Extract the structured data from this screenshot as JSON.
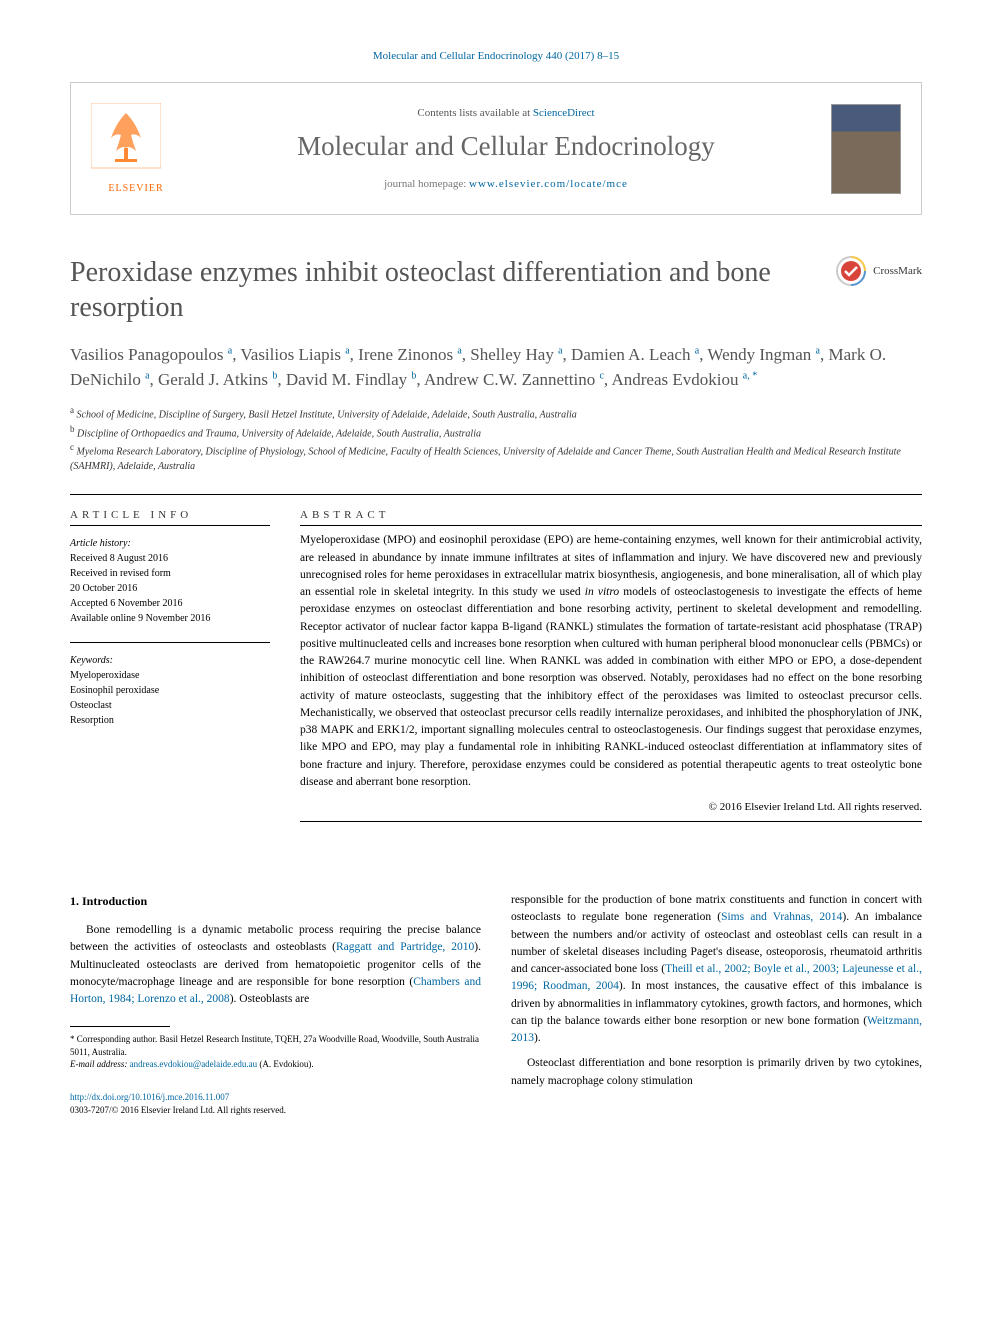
{
  "running_header": "Molecular and Cellular Endocrinology 440 (2017) 8–15",
  "banner": {
    "contents_prefix": "Contents lists available at ",
    "contents_link": "ScienceDirect",
    "journal_name": "Molecular and Cellular Endocrinology",
    "homepage_prefix": "journal homepage: ",
    "homepage_link": "www.elsevier.com/locate/mce",
    "publisher_label": "ELSEVIER"
  },
  "article": {
    "title": "Peroxidase enzymes inhibit osteoclast differentiation and bone resorption",
    "crossmark_label": "CrossMark"
  },
  "authors_html": "Vasilios Panagopoulos <sup>a</sup>, Vasilios Liapis <sup>a</sup>, Irene Zinonos <sup>a</sup>, Shelley Hay <sup>a</sup>, Damien A. Leach <sup>a</sup>, Wendy Ingman <sup>a</sup>, Mark O. DeNichilo <sup>a</sup>, Gerald J. Atkins <sup>b</sup>, David M. Findlay <sup>b</sup>, Andrew C.W. Zannettino <sup>c</sup>, Andreas Evdokiou <sup>a, *</sup>",
  "affiliations": [
    {
      "sup": "a",
      "text": "School of Medicine, Discipline of Surgery, Basil Hetzel Institute, University of Adelaide, Adelaide, South Australia, Australia"
    },
    {
      "sup": "b",
      "text": "Discipline of Orthopaedics and Trauma, University of Adelaide, Adelaide, South Australia, Australia"
    },
    {
      "sup": "c",
      "text": "Myeloma Research Laboratory, Discipline of Physiology, School of Medicine, Faculty of Health Sciences, University of Adelaide and Cancer Theme, South Australian Health and Medical Research Institute (SAHMRI), Adelaide, Australia"
    }
  ],
  "article_info": {
    "label": "ARTICLE INFO",
    "history_label": "Article history:",
    "history": [
      "Received 8 August 2016",
      "Received in revised form",
      "20 October 2016",
      "Accepted 6 November 2016",
      "Available online 9 November 2016"
    ],
    "keywords_label": "Keywords:",
    "keywords": [
      "Myeloperoxidase",
      "Eosinophil peroxidase",
      "Osteoclast",
      "Resorption"
    ]
  },
  "abstract": {
    "label": "ABSTRACT",
    "text": "Myeloperoxidase (MPO) and eosinophil peroxidase (EPO) are heme-containing enzymes, well known for their antimicrobial activity, are released in abundance by innate immune infiltrates at sites of inflammation and injury. We have discovered new and previously unrecognised roles for heme peroxidases in extracellular matrix biosynthesis, angiogenesis, and bone mineralisation, all of which play an essential role in skeletal integrity. In this study we used <span class=\"italic\">in vitro</span> models of osteoclastogenesis to investigate the effects of heme peroxidase enzymes on osteoclast differentiation and bone resorbing activity, pertinent to skeletal development and remodelling. Receptor activator of nuclear factor kappa B-ligand (RANKL) stimulates the formation of tartate-resistant acid phosphatase (TRAP) positive multinucleated cells and increases bone resorption when cultured with human peripheral blood mononuclear cells (PBMCs) or the RAW264.7 murine monocytic cell line. When RANKL was added in combination with either MPO or EPO, a dose-dependent inhibition of osteoclast differentiation and bone resorption was observed. Notably, peroxidases had no effect on the bone resorbing activity of mature osteoclasts, suggesting that the inhibitory effect of the peroxidases was limited to osteoclast precursor cells. Mechanistically, we observed that osteoclast precursor cells readily internalize peroxidases, and inhibited the phosphorylation of JNK, p38 MAPK and ERK1/2, important signalling molecules central to osteoclastogenesis. Our findings suggest that peroxidase enzymes, like MPO and EPO, may play a fundamental role in inhibiting RANKL-induced osteoclast differentiation at inflammatory sites of bone fracture and injury. Therefore, peroxidase enzymes could be considered as potential therapeutic agents to treat osteolytic bone disease and aberrant bone resorption.",
    "copyright": "© 2016 Elsevier Ireland Ltd. All rights reserved."
  },
  "intro": {
    "heading": "1. Introduction",
    "col1_p1": "Bone remodelling is a dynamic metabolic process requiring the precise balance between the activities of osteoclasts and osteoblasts (<span class=\"citation\">Raggatt and Partridge, 2010</span>). Multinucleated osteoclasts are derived from hematopoietic progenitor cells of the monocyte/macrophage lineage and are responsible for bone resorption (<span class=\"citation\">Chambers and Horton, 1984; Lorenzo et al., 2008</span>). Osteoblasts are",
    "col2_p1": "responsible for the production of bone matrix constituents and function in concert with osteoclasts to regulate bone regeneration (<span class=\"citation\">Sims and Vrahnas, 2014</span>). An imbalance between the numbers and/or activity of osteoclast and osteoblast cells can result in a number of skeletal diseases including Paget's disease, osteoporosis, rheumatoid arthritis and cancer-associated bone loss (<span class=\"citation\">Theill et al., 2002; Boyle et al., 2003; Lajeunesse et al., 1996; Roodman, 2004</span>). In most instances, the causative effect of this imbalance is driven by abnormalities in inflammatory cytokines, growth factors, and hormones, which can tip the balance towards either bone resorption or new bone formation (<span class=\"citation\">Weitzmann, 2013</span>).",
    "col2_p2": "Osteoclast differentiation and bone resorption is primarily driven by two cytokines, namely macrophage colony stimulation"
  },
  "footnote": {
    "corr_label": "* Corresponding author. Basil Hetzel Research Institute, TQEH, 27a Woodville Road, Woodville, South Australia 5011, Australia.",
    "email_label": "E-mail address:",
    "email": "andreas.evdokiou@adelaide.edu.au",
    "email_suffix": "(A. Evdokiou)."
  },
  "doi": {
    "link": "http://dx.doi.org/10.1016/j.mce.2016.11.007",
    "issn_line": "0303-7207/© 2016 Elsevier Ireland Ltd. All rights reserved."
  },
  "colors": {
    "link": "#0066a1",
    "title": "#555555",
    "orange": "#ff6600"
  }
}
